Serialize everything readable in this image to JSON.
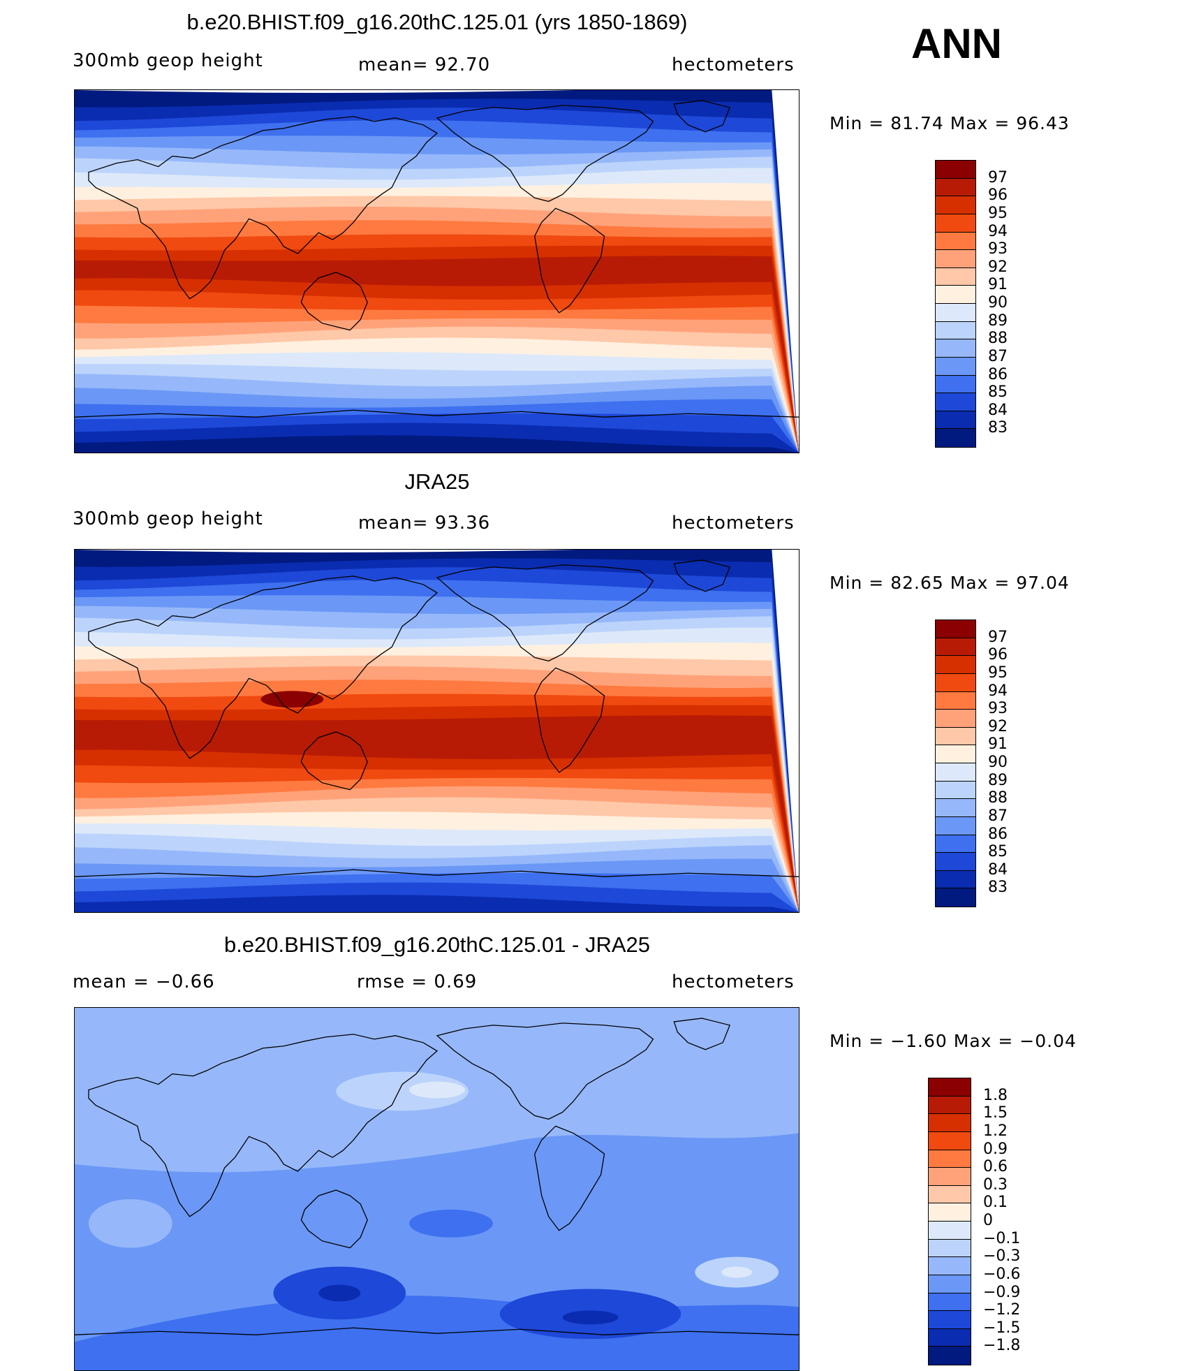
{
  "season": "ANN",
  "panels": [
    {
      "title": "b.e20.BHIST.f09_g16.20thC.125.01 (yrs 1850-1869)",
      "left_label": "300mb  geop  height",
      "center_label": "mean=   92.70",
      "units": "hectometers",
      "minmax": "Min  =   81.74  Max  =   96.43"
    },
    {
      "title": "JRA25",
      "left_label": "300mb  geop  height",
      "center_label": "mean=   93.36",
      "units": "hectometers",
      "minmax": "Min  =   82.65  Max  =   97.04"
    },
    {
      "title": "b.e20.BHIST.f09_g16.20thC.125.01 - JRA25",
      "left_label": "mean  =   −0.66",
      "center_label": "rmse  =    0.69",
      "units": "hectometers",
      "minmax": "Min  =   −1.60  Max  =   −0.04"
    }
  ],
  "legend_abs": {
    "labels": [
      "97",
      "96",
      "95",
      "94",
      "93",
      "92",
      "91",
      "90",
      "89",
      "88",
      "87",
      "86",
      "85",
      "84",
      "83"
    ],
    "colors": [
      "#8b0000",
      "#b81b05",
      "#d63000",
      "#f04a10",
      "#ff7a40",
      "#ffa27a",
      "#ffc8a8",
      "#fff0e0",
      "#dde9fa",
      "#bcd4fb",
      "#96b8fa",
      "#6b98f6",
      "#3e70ef",
      "#1e48d8",
      "#0a2cb0",
      "#001a80"
    ]
  },
  "legend_diff": {
    "labels": [
      "1.8",
      "1.5",
      "1.2",
      "0.9",
      "0.6",
      "0.3",
      "0.1",
      "0",
      "−0.1",
      "−0.3",
      "−0.6",
      "−0.9",
      "−1.2",
      "−1.5",
      "−1.8"
    ],
    "colors": [
      "#8b0000",
      "#b81b05",
      "#d63000",
      "#f04a10",
      "#ff7a40",
      "#ffa27a",
      "#ffc8a8",
      "#fff0e0",
      "#dde9fa",
      "#bcd4fb",
      "#96b8fa",
      "#6b98f6",
      "#3e70ef",
      "#1e48d8",
      "#0a2cb0",
      "#001a80"
    ]
  },
  "map_fields": {
    "model": {
      "rows": [
        "#001a80",
        "#0a2cb0",
        "#1e48d8",
        "#3e70ef",
        "#6b98f6",
        "#96b8fa",
        "#bcd4fb",
        "#dde9fa",
        "#fff0e0",
        "#ffc8a8",
        "#ffa27a",
        "#ff7a40",
        "#f04a10",
        "#d63000",
        "#b81b05",
        "#b81b05",
        "#d63000",
        "#f04a10",
        "#ff7a40",
        "#ffa27a",
        "#ffc8a8",
        "#fff0e0",
        "#dde9fa",
        "#bcd4fb",
        "#96b8fa",
        "#6b98f6",
        "#3e70ef",
        "#1e48d8",
        "#0a2cb0",
        "#001a80"
      ]
    },
    "obs": {
      "rows": [
        "#001a80",
        "#0a2cb0",
        "#1e48d8",
        "#3e70ef",
        "#6b98f6",
        "#96b8fa",
        "#bcd4fb",
        "#dde9fa",
        "#fff0e0",
        "#ffc8a8",
        "#ffa27a",
        "#ff7a40",
        "#f04a10",
        "#d63000",
        "#b81b05",
        "#b81b05",
        "#b81b05",
        "#d63000",
        "#f04a10",
        "#ff7a40",
        "#ffa27a",
        "#ffc8a8",
        "#fff0e0",
        "#dde9fa",
        "#bcd4fb",
        "#96b8fa",
        "#6b98f6",
        "#3e70ef",
        "#1e48d8",
        "#0a2cb0"
      ]
    },
    "diff": {
      "base": "#6b98f6"
    }
  }
}
